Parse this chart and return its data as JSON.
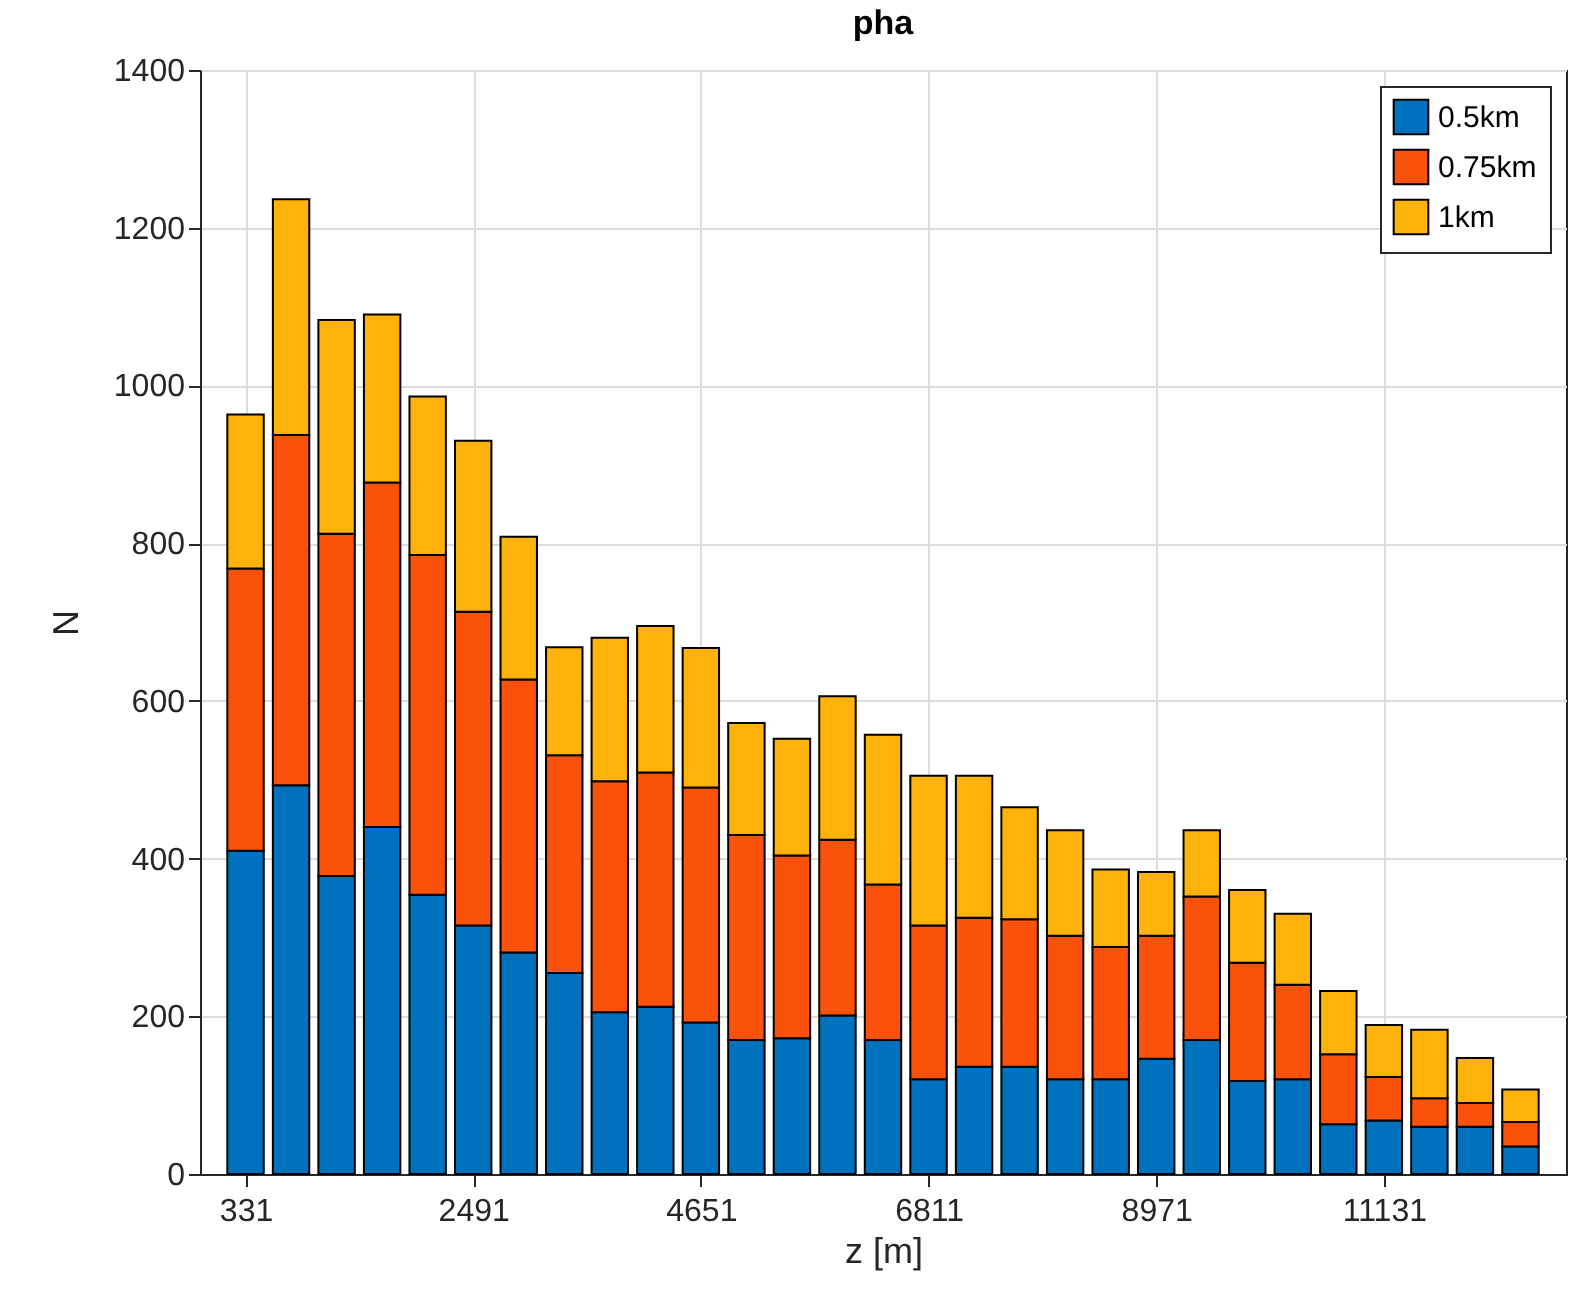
{
  "chart_data": {
    "type": "bar",
    "title": "pha",
    "xlabel": "z [m]",
    "ylabel": "N",
    "stacked": true,
    "x": [
      331,
      763,
      1195,
      1627,
      2059,
      2491,
      2923,
      3355,
      3787,
      4219,
      4651,
      5083,
      5515,
      5947,
      6379,
      6811,
      7243,
      7675,
      8107,
      8539,
      8971,
      9403,
      9835,
      10267,
      10699,
      11131,
      11563,
      11995,
      12427
    ],
    "series": [
      {
        "name": "0.5km",
        "color": "#0072bd",
        "values": [
          410,
          493,
          378,
          440,
          354,
          315,
          281,
          255,
          205,
          212,
          192,
          170,
          172,
          201,
          170,
          120,
          136,
          136,
          120,
          120,
          146,
          170,
          118,
          120,
          63,
          68,
          60,
          60,
          35
        ]
      },
      {
        "name": "0.75km",
        "color": "#fa520a",
        "values": [
          358,
          444,
          434,
          437,
          431,
          398,
          346,
          276,
          293,
          297,
          298,
          260,
          232,
          223,
          197,
          195,
          189,
          187,
          182,
          168,
          156,
          182,
          150,
          120,
          89,
          55,
          36,
          30,
          31
        ]
      },
      {
        "name": "1km",
        "color": "#ffb20a",
        "values": [
          195,
          299,
          271,
          213,
          201,
          217,
          181,
          137,
          182,
          186,
          177,
          142,
          148,
          182,
          190,
          190,
          180,
          142,
          134,
          98,
          81,
          84,
          92,
          90,
          80,
          66,
          87,
          57,
          41
        ]
      }
    ],
    "xlim": [
      -101,
      12859
    ],
    "xticks": [
      331,
      2491,
      4651,
      6811,
      8971,
      11131
    ],
    "ylim": [
      0,
      1400
    ],
    "yticks": [
      0,
      200,
      400,
      600,
      800,
      1000,
      1200,
      1400
    ],
    "grid": true,
    "legend": "top right"
  }
}
